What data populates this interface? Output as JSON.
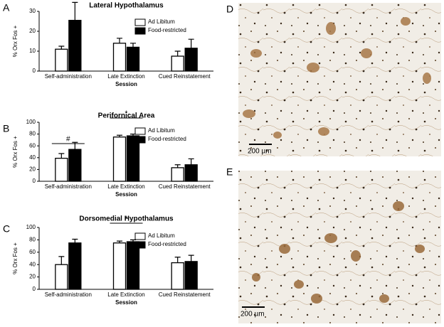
{
  "panels": {
    "labels": [
      "A",
      "B",
      "C",
      "D",
      "E"
    ],
    "scale_bars": [
      "200 µm",
      "200 µm"
    ]
  },
  "chart_data": [
    {
      "type": "bar",
      "title": "Lateral Hypothalamus",
      "xlabel": "Session",
      "ylabel": "% Orx Fos +",
      "categories": [
        "Self-administration",
        "Late Extinction",
        "Cued Reinstatement"
      ],
      "series": [
        {
          "name": "Ad Libitum",
          "color": "#ffffff",
          "values": [
            11,
            14,
            7.5
          ],
          "errors": [
            1.5,
            2.5,
            2.5
          ]
        },
        {
          "name": "Food-restricted",
          "color": "#000000",
          "values": [
            25.5,
            12,
            11.5
          ],
          "errors": [
            9,
            2,
            4.5
          ]
        }
      ],
      "ylim": [
        0,
        30
      ],
      "yticks": [
        0,
        10,
        20,
        30
      ],
      "grid": false,
      "legend": "upper right",
      "annotations": []
    },
    {
      "type": "bar",
      "title": "Perifornical Area",
      "xlabel": "Session",
      "ylabel": "% Orx Fos +",
      "categories": [
        "Self-administration",
        "Late Extinction",
        "Cued Reinstatement"
      ],
      "series": [
        {
          "name": "Ad Libitum",
          "color": "#ffffff",
          "values": [
            39,
            75,
            23
          ],
          "errors": [
            8,
            3,
            5
          ]
        },
        {
          "name": "Food-restricted",
          "color": "#000000",
          "values": [
            54,
            77,
            28
          ],
          "errors": [
            12,
            3,
            10
          ]
        }
      ],
      "ylim": [
        0,
        100
      ],
      "yticks": [
        0,
        20,
        40,
        60,
        80,
        100
      ],
      "grid": false,
      "legend": "upper right",
      "annotations": [
        "#",
        "*"
      ]
    },
    {
      "type": "bar",
      "title": "Dorsomedial Hypothalamus",
      "xlabel": "Session",
      "ylabel": "% Orx Fos +",
      "categories": [
        "Self-administration",
        "Late Extinction",
        "Cued Reinstatement"
      ],
      "series": [
        {
          "name": "Ad Libitum",
          "color": "#ffffff",
          "values": [
            40,
            75,
            43
          ],
          "errors": [
            13,
            3,
            9
          ]
        },
        {
          "name": "Food-restricted",
          "color": "#000000",
          "values": [
            75,
            77,
            45
          ],
          "errors": [
            6,
            3,
            10
          ]
        }
      ],
      "ylim": [
        0,
        100
      ],
      "yticks": [
        0,
        20,
        40,
        60,
        80,
        100
      ],
      "grid": false,
      "legend": "upper right",
      "annotations": [
        "*"
      ]
    }
  ]
}
